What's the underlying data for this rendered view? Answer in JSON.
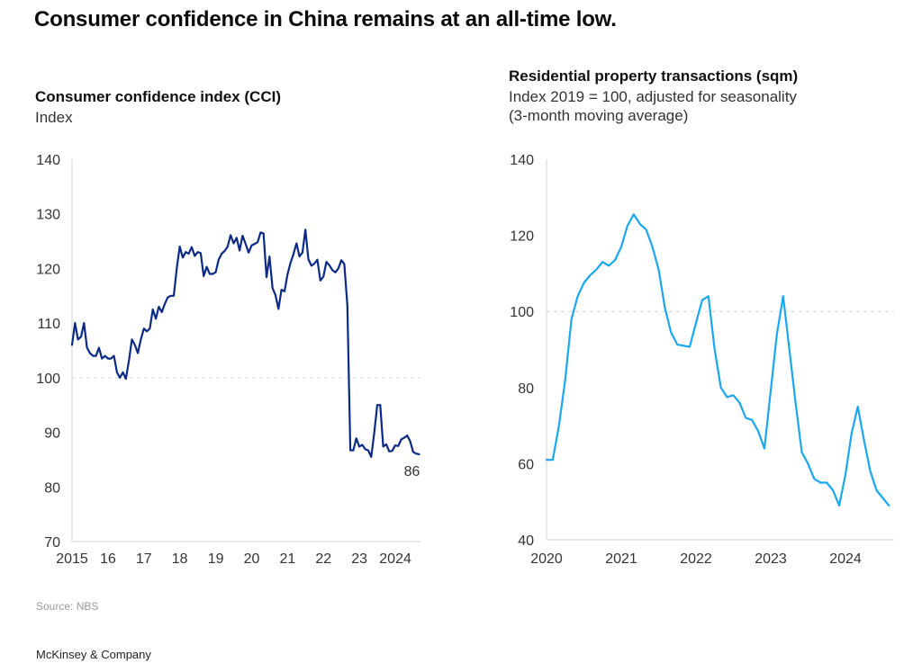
{
  "header": {
    "title": "Consumer confidence in China remains at an all-time low."
  },
  "footer": {
    "source": "Source: NBS",
    "brand": "McKinsey & Company"
  },
  "chart_data": [
    {
      "type": "line",
      "title": "Consumer confidence index (CCI)",
      "subtitle": "Index",
      "xlabel": "",
      "ylabel": "Index",
      "ylim": [
        70,
        140
      ],
      "yticks": [
        "140",
        "130",
        "120",
        "110",
        "100",
        "90",
        "80",
        "70"
      ],
      "ytick_values": [
        140,
        130,
        120,
        110,
        100,
        90,
        80,
        70
      ],
      "xticks": [
        "2015",
        "16",
        "17",
        "18",
        "19",
        "20",
        "21",
        "22",
        "23",
        "2024"
      ],
      "xtick_values": [
        2015,
        2016,
        2017,
        2018,
        2019,
        2020,
        2021,
        2022,
        2023,
        2024
      ],
      "xlim": [
        2015,
        2024.7
      ],
      "reference_line": 100,
      "grid": false,
      "line_color": "#0b2a86",
      "end_label": "86",
      "series": [
        {
          "name": "CCI",
          "start": 2015.0,
          "step": 0.0833,
          "values": [
            106,
            110,
            107,
            107.5,
            110,
            105.5,
            104.5,
            104,
            104,
            105.5,
            103.5,
            104,
            103.5,
            103.5,
            104,
            101,
            100,
            101,
            99.8,
            103,
            107,
            106,
            104.5,
            107,
            109,
            108.5,
            109,
            112.5,
            110.8,
            113,
            112,
            113.5,
            114.7,
            115,
            115,
            120,
            124,
            122,
            123,
            122.7,
            123.9,
            122.3,
            123,
            122.8,
            118.6,
            120.3,
            119,
            119,
            119.3,
            121.6,
            122.7,
            123.2,
            124,
            126.1,
            124.6,
            125.6,
            123.3,
            126,
            124.5,
            122.9,
            124.2,
            124.5,
            124.8,
            126.6,
            126.4,
            118.4,
            122.2,
            116.4,
            115.1,
            112.6,
            116.1,
            115.8,
            118.9,
            121,
            122.6,
            124.6,
            122.2,
            122.9,
            127.1,
            121.7,
            120.5,
            120.9,
            121.6,
            117.8,
            118.5,
            121.2,
            120.6,
            119.7,
            119.3,
            120,
            121.5,
            120.8,
            113.2,
            86.7,
            86.7,
            88.9,
            87.4,
            87.7,
            86.9,
            86.7,
            85.5,
            90,
            95,
            95,
            87.4,
            87.8,
            86.5,
            86.6,
            87.6,
            87.5,
            88.7,
            89,
            89.4,
            88.4,
            86.4,
            86.1,
            86
          ]
        }
      ]
    },
    {
      "type": "line",
      "title": "Residential property transactions (sqm)",
      "subtitle_lines": [
        "Index 2019 = 100, adjusted for seasonality",
        "(3-month moving average)"
      ],
      "xlabel": "",
      "ylabel": "Index 2019 = 100",
      "ylim": [
        40,
        140
      ],
      "yticks": [
        "140",
        "120",
        "100",
        "80",
        "60",
        "40"
      ],
      "ytick_values": [
        140,
        120,
        100,
        80,
        60,
        40
      ],
      "xticks": [
        "2020",
        "2021",
        "2022",
        "2023",
        "2024"
      ],
      "xtick_values": [
        2020,
        2021,
        2022,
        2023,
        2024
      ],
      "xlim": [
        2020,
        2024.65
      ],
      "reference_line": 100,
      "grid": false,
      "line_color": "#1aa7f0",
      "series": [
        {
          "name": "Residential property transactions",
          "start": 2020.0,
          "step": 0.0833,
          "values": [
            61,
            61,
            70,
            82,
            98,
            104,
            107.5,
            109.5,
            111,
            113,
            112,
            113.5,
            117,
            122.5,
            125.5,
            123,
            121.5,
            117,
            111,
            101,
            94.5,
            91.3,
            91,
            90.7,
            97,
            103,
            104,
            90,
            80,
            77.5,
            78,
            76,
            72,
            71.5,
            68.5,
            64,
            79,
            94,
            104,
            90,
            76,
            63,
            60,
            56,
            55,
            55,
            53,
            49,
            57,
            68,
            75,
            66,
            58,
            53,
            51,
            49
          ]
        }
      ]
    }
  ]
}
